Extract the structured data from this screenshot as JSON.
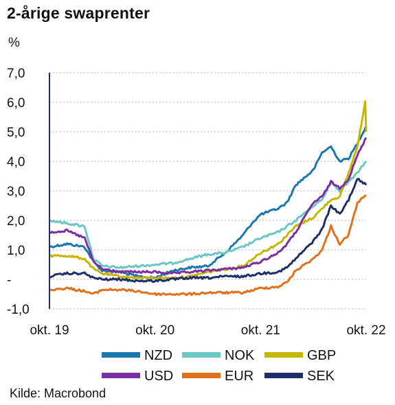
{
  "chart_data": {
    "type": "line",
    "title": "2-årige swaprenter",
    "ylabel": "%",
    "source": "Kilde: Macrobond",
    "ylim": [
      -1.0,
      7.0
    ],
    "yticks": [
      {
        "value": 7.0,
        "label": "7,0"
      },
      {
        "value": 6.0,
        "label": "6,0"
      },
      {
        "value": 5.0,
        "label": "5,0"
      },
      {
        "value": 4.0,
        "label": "4,0"
      },
      {
        "value": 3.0,
        "label": "3,0"
      },
      {
        "value": 2.0,
        "label": "2,0"
      },
      {
        "value": 1.0,
        "label": "1,0"
      },
      {
        "value": 0.0,
        "label": "-"
      },
      {
        "value": -1.0,
        "label": "-1,0"
      }
    ],
    "xlim": [
      "2019-10",
      "2022-10"
    ],
    "xticks": [
      {
        "value": "2019-10",
        "label": "okt. 19"
      },
      {
        "value": "2020-10",
        "label": "okt. 20"
      },
      {
        "value": "2021-10",
        "label": "okt. 21"
      },
      {
        "value": "2022-10",
        "label": "okt. 22"
      }
    ],
    "grid": "horizontal-dotted",
    "legend_position": "bottom",
    "series": [
      {
        "name": "NZD",
        "color": "#1a78b0",
        "points": [
          [
            "2019-10",
            1.1
          ],
          [
            "2019-12",
            1.2
          ],
          [
            "2020-02",
            1.1
          ],
          [
            "2020-03",
            0.6
          ],
          [
            "2020-04",
            0.3
          ],
          [
            "2020-06",
            0.25
          ],
          [
            "2020-08",
            0.1
          ],
          [
            "2020-10",
            0.05
          ],
          [
            "2020-12",
            0.3
          ],
          [
            "2021-02",
            0.4
          ],
          [
            "2021-04",
            0.45
          ],
          [
            "2021-06",
            0.9
          ],
          [
            "2021-07",
            1.2
          ],
          [
            "2021-08",
            1.5
          ],
          [
            "2021-09",
            1.9
          ],
          [
            "2021-10",
            2.2
          ],
          [
            "2021-12",
            2.4
          ],
          [
            "2022-01",
            2.6
          ],
          [
            "2022-02",
            3.2
          ],
          [
            "2022-04",
            3.7
          ],
          [
            "2022-05",
            4.3
          ],
          [
            "2022-06",
            4.5
          ],
          [
            "2022-07",
            4.0
          ],
          [
            "2022-08",
            4.1
          ],
          [
            "2022-09",
            4.6
          ],
          [
            "2022-10",
            5.2
          ]
        ]
      },
      {
        "name": "NOK",
        "color": "#6bc7c6",
        "points": [
          [
            "2019-10",
            2.0
          ],
          [
            "2019-12",
            1.9
          ],
          [
            "2020-02",
            1.8
          ],
          [
            "2020-03",
            0.7
          ],
          [
            "2020-04",
            0.45
          ],
          [
            "2020-06",
            0.4
          ],
          [
            "2020-08",
            0.45
          ],
          [
            "2020-10",
            0.5
          ],
          [
            "2020-12",
            0.55
          ],
          [
            "2021-02",
            0.7
          ],
          [
            "2021-04",
            0.85
          ],
          [
            "2021-06",
            0.9
          ],
          [
            "2021-08",
            1.1
          ],
          [
            "2021-10",
            1.4
          ],
          [
            "2021-12",
            1.6
          ],
          [
            "2022-01",
            1.8
          ],
          [
            "2022-02",
            2.0
          ],
          [
            "2022-04",
            2.5
          ],
          [
            "2022-05",
            2.7
          ],
          [
            "2022-06",
            3.3
          ],
          [
            "2022-07",
            3.0
          ],
          [
            "2022-08",
            3.3
          ],
          [
            "2022-09",
            3.6
          ],
          [
            "2022-10",
            4.0
          ]
        ]
      },
      {
        "name": "GBP",
        "color": "#c9b400",
        "points": [
          [
            "2019-10",
            0.8
          ],
          [
            "2019-12",
            0.8
          ],
          [
            "2020-02",
            0.7
          ],
          [
            "2020-03",
            0.35
          ],
          [
            "2020-04",
            0.2
          ],
          [
            "2020-06",
            0.1
          ],
          [
            "2020-08",
            0.05
          ],
          [
            "2020-10",
            0.05
          ],
          [
            "2020-12",
            0.05
          ],
          [
            "2021-02",
            0.1
          ],
          [
            "2021-04",
            0.25
          ],
          [
            "2021-06",
            0.35
          ],
          [
            "2021-08",
            0.45
          ],
          [
            "2021-10",
            0.9
          ],
          [
            "2021-12",
            1.2
          ],
          [
            "2022-01",
            1.5
          ],
          [
            "2022-02",
            1.8
          ],
          [
            "2022-04",
            2.1
          ],
          [
            "2022-05",
            2.4
          ],
          [
            "2022-06",
            2.7
          ],
          [
            "2022-07",
            2.8
          ],
          [
            "2022-08",
            3.6
          ],
          [
            "2022-09",
            4.5
          ],
          [
            "2022-09-28",
            6.0
          ],
          [
            "2022-10",
            5.0
          ]
        ]
      },
      {
        "name": "USD",
        "color": "#7b2fa1",
        "points": [
          [
            "2019-10",
            1.6
          ],
          [
            "2019-12",
            1.65
          ],
          [
            "2020-02",
            1.4
          ],
          [
            "2020-03",
            0.6
          ],
          [
            "2020-04",
            0.35
          ],
          [
            "2020-06",
            0.25
          ],
          [
            "2020-08",
            0.25
          ],
          [
            "2020-10",
            0.25
          ],
          [
            "2020-12",
            0.2
          ],
          [
            "2021-02",
            0.25
          ],
          [
            "2021-04",
            0.3
          ],
          [
            "2021-06",
            0.35
          ],
          [
            "2021-08",
            0.4
          ],
          [
            "2021-10",
            0.6
          ],
          [
            "2021-12",
            0.9
          ],
          [
            "2022-01",
            1.2
          ],
          [
            "2022-02",
            1.6
          ],
          [
            "2022-04",
            2.6
          ],
          [
            "2022-05",
            2.8
          ],
          [
            "2022-06",
            3.3
          ],
          [
            "2022-07",
            3.1
          ],
          [
            "2022-08",
            3.4
          ],
          [
            "2022-09",
            4.2
          ],
          [
            "2022-10",
            4.8
          ]
        ]
      },
      {
        "name": "EUR",
        "color": "#e2701b",
        "points": [
          [
            "2019-10",
            -0.35
          ],
          [
            "2019-12",
            -0.3
          ],
          [
            "2020-02",
            -0.4
          ],
          [
            "2020-03",
            -0.5
          ],
          [
            "2020-04",
            -0.35
          ],
          [
            "2020-06",
            -0.35
          ],
          [
            "2020-08",
            -0.4
          ],
          [
            "2020-10",
            -0.5
          ],
          [
            "2020-12",
            -0.5
          ],
          [
            "2021-02",
            -0.5
          ],
          [
            "2021-04",
            -0.45
          ],
          [
            "2021-06",
            -0.45
          ],
          [
            "2021-08",
            -0.45
          ],
          [
            "2021-10",
            -0.3
          ],
          [
            "2021-12",
            -0.25
          ],
          [
            "2022-01",
            -0.1
          ],
          [
            "2022-02",
            0.3
          ],
          [
            "2022-04",
            0.7
          ],
          [
            "2022-05",
            1.0
          ],
          [
            "2022-06",
            1.8
          ],
          [
            "2022-07",
            1.2
          ],
          [
            "2022-08",
            1.5
          ],
          [
            "2022-09",
            2.6
          ],
          [
            "2022-10",
            2.85
          ]
        ]
      },
      {
        "name": "SEK",
        "color": "#1d2f6a",
        "points": [
          [
            "2019-10",
            0.1
          ],
          [
            "2019-12",
            0.2
          ],
          [
            "2020-02",
            0.2
          ],
          [
            "2020-03",
            0.05
          ],
          [
            "2020-04",
            0.0
          ],
          [
            "2020-06",
            0.0
          ],
          [
            "2020-08",
            -0.05
          ],
          [
            "2020-10",
            -0.05
          ],
          [
            "2020-12",
            0.0
          ],
          [
            "2021-02",
            0.05
          ],
          [
            "2021-04",
            0.05
          ],
          [
            "2021-06",
            0.1
          ],
          [
            "2021-08",
            0.1
          ],
          [
            "2021-10",
            0.2
          ],
          [
            "2021-12",
            0.25
          ],
          [
            "2022-01",
            0.4
          ],
          [
            "2022-02",
            0.7
          ],
          [
            "2022-04",
            1.3
          ],
          [
            "2022-05",
            1.7
          ],
          [
            "2022-06",
            2.5
          ],
          [
            "2022-07",
            2.2
          ],
          [
            "2022-08",
            2.7
          ],
          [
            "2022-09",
            3.4
          ],
          [
            "2022-10",
            3.2
          ]
        ]
      }
    ]
  }
}
